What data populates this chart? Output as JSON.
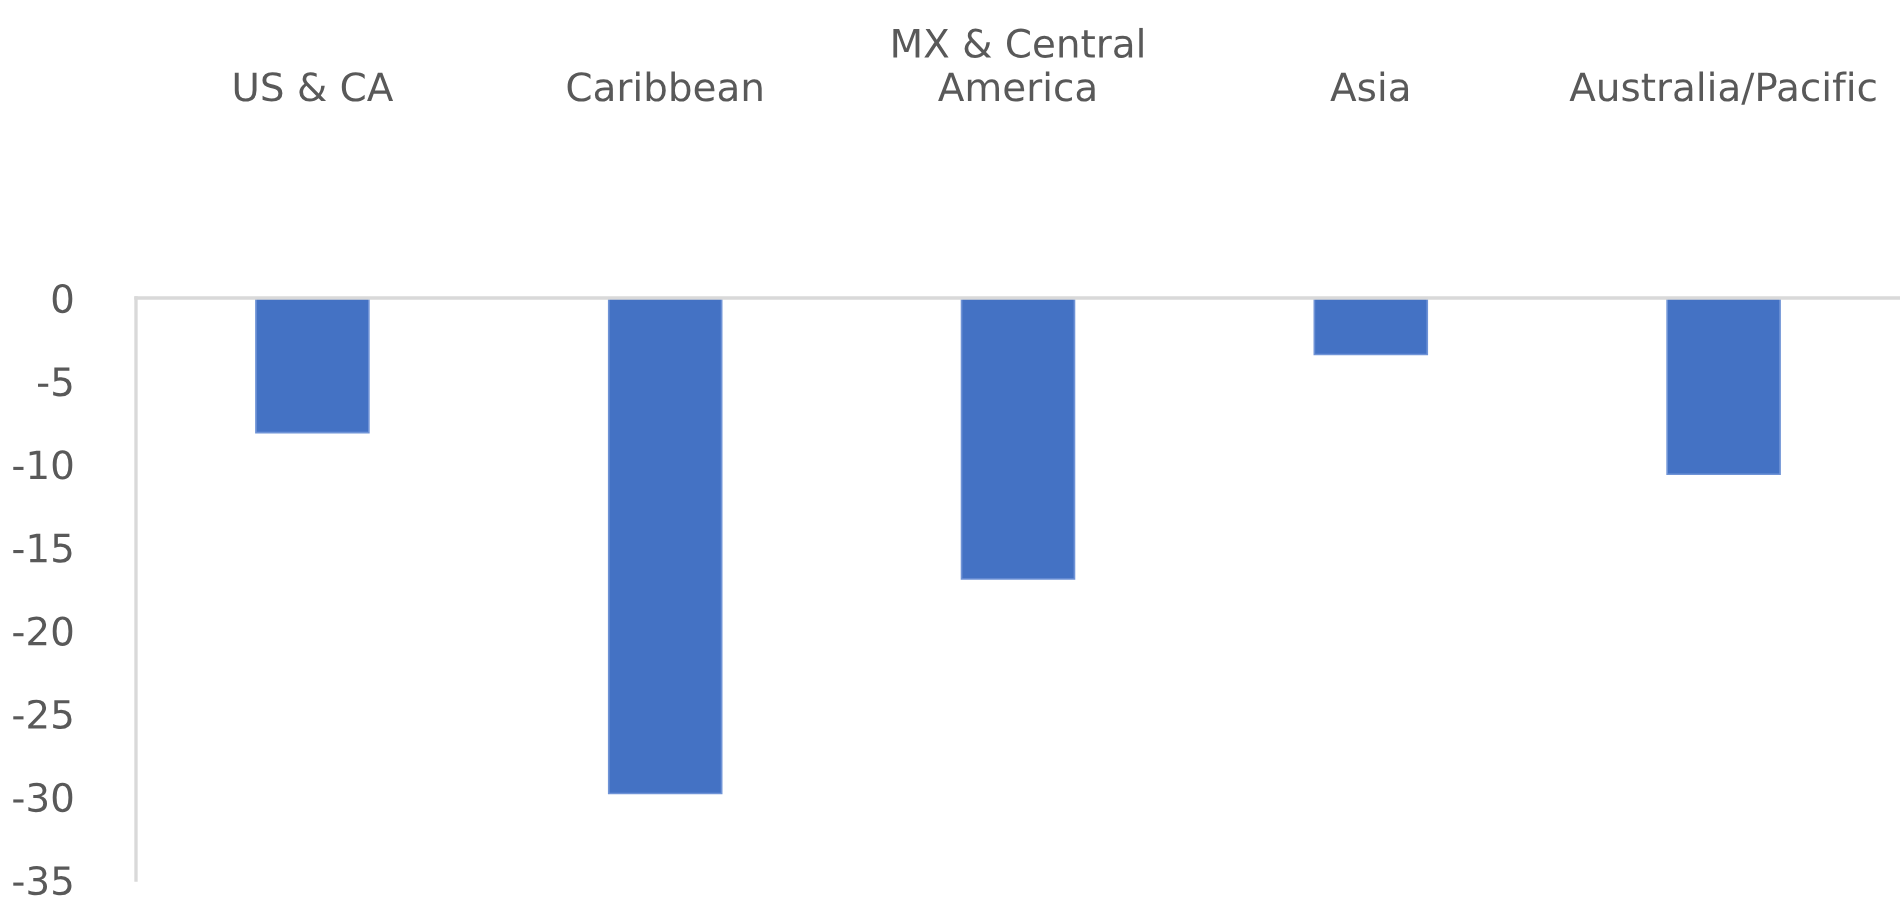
{
  "chart_data": {
    "type": "bar",
    "categories": [
      "US & CA",
      "Caribbean",
      "MX & Central America",
      "Asia",
      "Australia/Pacific"
    ],
    "values": [
      -8.1,
      -29.8,
      -16.9,
      -3.4,
      -10.6
    ],
    "color": "#4472c4",
    "ylim": [
      -35,
      0
    ],
    "yticks": [
      -35,
      -30,
      -25,
      -20,
      -15,
      -10,
      -5,
      0
    ],
    "grid": false
  }
}
